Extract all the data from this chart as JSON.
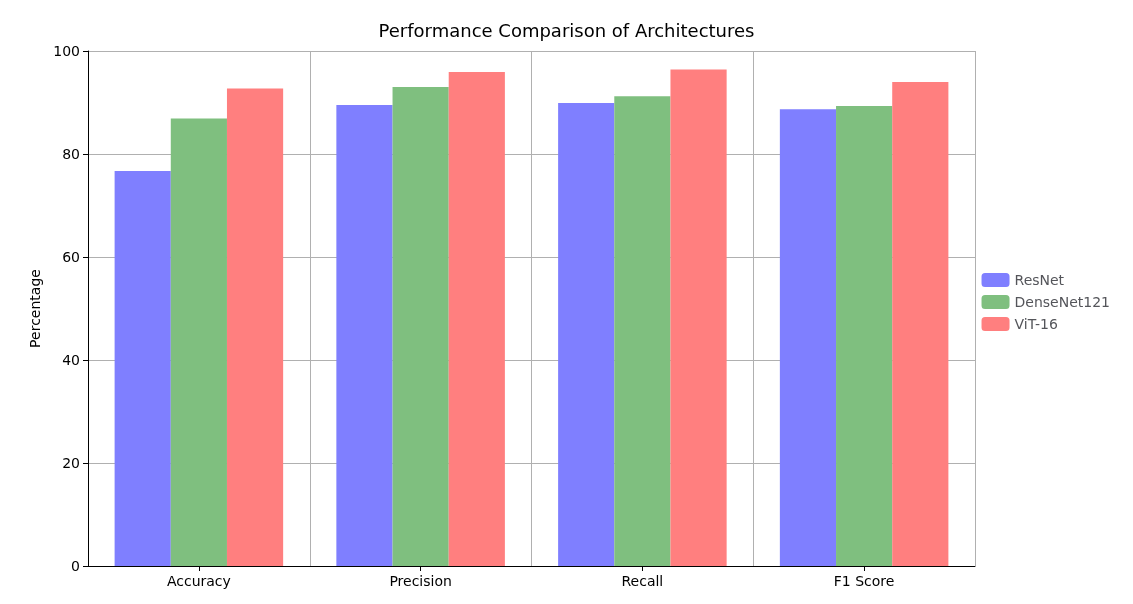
{
  "chart_data": {
    "type": "bar",
    "title": "Performance Comparison of Architectures",
    "ylabel": "Percentage",
    "categories": [
      "Accuracy",
      "Precision",
      "Recall",
      "F1 Score"
    ],
    "series": [
      {
        "name": "ResNet",
        "color": "#7f7fff",
        "values": [
          76.7,
          89.5,
          89.9,
          88.7
        ]
      },
      {
        "name": "DenseNet121",
        "color": "#7fbf7f",
        "values": [
          86.9,
          93.0,
          91.2,
          89.3
        ]
      },
      {
        "name": "ViT-16",
        "color": "#ff7f7f",
        "values": [
          92.7,
          95.9,
          96.4,
          94.0
        ]
      }
    ],
    "ylim": [
      0,
      100
    ],
    "yticks": [
      0,
      20,
      40,
      60,
      80,
      100
    ],
    "grid": true,
    "legend": "right"
  }
}
